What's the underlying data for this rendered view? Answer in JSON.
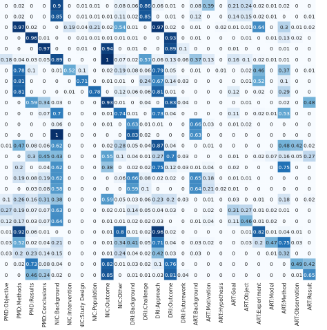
{
  "chart_data": {
    "type": "heatmap",
    "title": "",
    "xlabel": "",
    "ylabel": "",
    "colormap": "Blues",
    "value_range": [
      0,
      1
    ],
    "x_labels": [
      "PMD:Objective",
      "PMD:Methods",
      "PMD:Results",
      "PMD:Conclusions",
      "NIC:Background",
      "NIC:Intervention",
      "NIC:Study Design",
      "NIC:Population",
      "NIC:Outcome",
      "NIC:Other",
      "DRI:Background",
      "DRI:Challenge",
      "DRI:Approach",
      "DRI:Outcome",
      "DRI:Futurework",
      "ART:Background",
      "ART:Motivation",
      "ART:Hypothesis",
      "ART:Goal",
      "ART:Object",
      "ART:Experiment",
      "ART:Model",
      "ART:Method",
      "ART:Observation",
      "ART:Result"
    ],
    "row_label_fragments": [
      "",
      "",
      "",
      "",
      "",
      "",
      "",
      "",
      "",
      "",
      "",
      "",
      "",
      "",
      "",
      "",
      "",
      "",
      "",
      "",
      "",
      "",
      "",
      "",
      "",
      ""
    ],
    "matrix": [
      [
        "0",
        "0.02",
        "0",
        "0",
        "0.9",
        "0",
        "0.01",
        "0.01",
        "0",
        "0.08",
        "0.06",
        "0.86",
        "0.06",
        "0.01",
        "0",
        "0.08",
        "0.39",
        "0",
        "0.21",
        "0.24",
        "0.02",
        "0.01",
        "0.02",
        "0",
        "0"
      ],
      [
        "0",
        "0.02",
        "0",
        "0",
        "0.85",
        "0",
        "0.01",
        "0.01",
        "0.01",
        "0.11",
        "0.02",
        "0.85",
        "0",
        "0.01",
        "0",
        "0.12",
        "0",
        "0",
        "0.14",
        "0.15",
        "0.02",
        "0.01",
        "0",
        "0",
        "0.01"
      ],
      [
        "0",
        "0.97",
        "0.02",
        "0",
        "0",
        "0.19",
        "0.04",
        "0.21",
        "0.02",
        "0.54",
        "0.01",
        "0",
        "0.97",
        "0.02",
        "0",
        "0.01",
        "0",
        "0.02",
        "0.01",
        "0.01",
        "0.64",
        "0",
        "0.3",
        "0.01",
        "0.02"
      ],
      [
        "0",
        "0",
        "0.96",
        "0.01",
        "0",
        "0",
        "0.01",
        "0.01",
        "0.01",
        "0.01",
        "0.01",
        "0",
        "0",
        "0.93",
        "0",
        "0.01",
        "0",
        "0",
        "0",
        "0.01",
        "0",
        "0.01",
        "0.13",
        "0.02",
        "0"
      ],
      [
        "0",
        "0",
        "0",
        "0.97",
        "0",
        "0",
        "0.01",
        "0",
        "0.94",
        "0",
        "0.01",
        "0",
        "0",
        "0.89",
        "0.1",
        "0",
        "0",
        "0",
        "0.01",
        "0",
        "0",
        "0",
        "0.01",
        "0",
        "0"
      ],
      [
        "0.18",
        "0.04",
        "0.03",
        "0.05",
        "0.89",
        "0",
        "0",
        "0",
        "1",
        "0.07",
        "0.02",
        "0.57",
        "0.06",
        "0.13",
        "0.06",
        "0.37",
        "0.13",
        "0",
        "0.16",
        "0.1",
        "0.02",
        "0.01",
        "0.01",
        "0",
        "0"
      ],
      [
        "0",
        "0.78",
        "0.1",
        "0",
        "0.01",
        "0.52",
        "0.1",
        "0",
        "0.02",
        "0.19",
        "0.08",
        "0.06",
        "0.79",
        "0.05",
        "0",
        "0.01",
        "0",
        "0.01",
        "0",
        "0.02",
        "0.46",
        "0",
        "0.37",
        "0",
        "0.01"
      ],
      [
        "0",
        "0.81",
        "0",
        "0",
        "0",
        "0",
        "0.71",
        "0",
        "0.01",
        "0.01",
        "0",
        "0.24",
        "0.67",
        "0.14",
        "0.03",
        "0",
        "0",
        "0",
        "0",
        "0.01",
        "0.52",
        "0",
        "0.1",
        "0",
        "0"
      ],
      [
        "0",
        "0.81",
        "0",
        "0",
        "0",
        "0.01",
        "0",
        "0.78",
        "0",
        "0.12",
        "0.06",
        "0.06",
        "0.81",
        "0.01",
        "0",
        "0",
        "0",
        "0",
        "0.12",
        "0",
        "0.02",
        "0",
        "0.29",
        "0",
        "0"
      ],
      [
        "0",
        "0",
        "0.59",
        "0.34",
        "0.03",
        "0",
        "0",
        "0",
        "0.93",
        "0.01",
        "0",
        "0.04",
        "0",
        "0.83",
        "0.04",
        "0",
        "0",
        "0",
        "0",
        "0.01",
        "0",
        "0",
        "0.02",
        "0",
        "0.48"
      ],
      [
        "0",
        "0",
        "0",
        "0.07",
        "0.7",
        "0",
        "0",
        "0",
        "0.01",
        "0.74",
        "0.01",
        "0",
        "0.73",
        "0.04",
        "0",
        "0",
        "0",
        "0",
        "0.11",
        "0",
        "0.02",
        "0.01",
        "0.53",
        "0",
        "0"
      ],
      [
        "0",
        "0",
        "0",
        "0",
        "0.06",
        "0",
        "0",
        "0",
        "0.01",
        "0",
        "0.63",
        "0.01",
        "0.01",
        "0",
        "0",
        "0.66",
        "0.03",
        "0",
        "0.01",
        "0.02",
        "0",
        "0",
        "0",
        "0",
        "0"
      ],
      [
        "0",
        "0",
        "0",
        "0",
        "1",
        "0",
        "0",
        "0",
        "0",
        "0",
        "0.83",
        "0.02",
        "0",
        "0",
        "0",
        "0.63",
        "0",
        "0",
        "0",
        "0",
        "0",
        "0",
        "0",
        "0",
        "0"
      ],
      [
        "0.01",
        "0.47",
        "0.08",
        "0.06",
        "0.62",
        "0",
        "0",
        "0",
        "0.02",
        "0.28",
        "0.05",
        "0.04",
        "0.87",
        "0.04",
        "0",
        "0",
        "0.01",
        "0",
        "0",
        "0",
        "0",
        "0",
        "0.48",
        "0.42",
        "0.02"
      ],
      [
        "0",
        "0",
        "0.3",
        "0.45",
        "0.43",
        "0",
        "0",
        "0",
        "0.55",
        "0.1",
        "0.04",
        "0.01",
        "0.27",
        "0.7",
        "0.03",
        "0",
        "0",
        "0",
        "0.01",
        "0",
        "0.02",
        "0.07",
        "0.16",
        "0.05",
        "0.27"
      ],
      [
        "0",
        "0.2",
        "0",
        "0.04",
        "0.62",
        "0",
        "0",
        "0",
        "0.38",
        "0",
        "0.02",
        "0.02",
        "0.75",
        "0.12",
        "0.03",
        "0.01",
        "0.04",
        "0",
        "0.02",
        "0",
        "0",
        "0",
        "0.75",
        "0",
        "0"
      ],
      [
        "0",
        "0.19",
        "0.08",
        "0.19",
        "0.62",
        "0",
        "0",
        "0",
        "0",
        "0.06",
        "0.66",
        "0.08",
        "0.02",
        "0.02",
        "0",
        "0.65",
        "0.18",
        "0",
        "0.01",
        "0.01",
        "0",
        "0",
        "0",
        "0",
        "0"
      ],
      [
        "0",
        "0",
        "0.03",
        "0.08",
        "0.58",
        "0",
        "0",
        "0",
        "0",
        "0",
        "0.59",
        "0.1",
        "0",
        "0",
        "0",
        "0.64",
        "0.21",
        "0.02",
        "0.01",
        "0",
        "0",
        "0",
        "0",
        "0",
        "0"
      ],
      [
        "0.1",
        "0.26",
        "0.16",
        "0.31",
        "0.38",
        "0",
        "0",
        "0",
        "0.59",
        "0.05",
        "0.03",
        "0.06",
        "0.23",
        "0.2",
        "0.03",
        "0",
        "0.01",
        "0",
        "0.03",
        "0",
        "0.01",
        "0",
        "0.18",
        "0",
        "0.02"
      ],
      [
        "0.27",
        "0.19",
        "0.07",
        "0.07",
        "0.63",
        "0",
        "0",
        "0",
        "0.02",
        "0.01",
        "0.14",
        "0.05",
        "0.04",
        "0.03",
        "0",
        "0",
        "0.02",
        "0",
        "0.31",
        "0.27",
        "0.01",
        "0.02",
        "0.01",
        "0",
        "0"
      ],
      [
        "0.12",
        "0.17",
        "0.03",
        "0.07",
        "0.64",
        "0",
        "0",
        "0",
        "0.01",
        "0.01",
        "0.02",
        "0.02",
        "0.03",
        "0",
        "0",
        "0.01",
        "0.04",
        "0",
        "0.11",
        "0.46",
        "0.01",
        "0.02",
        "0",
        "0",
        "0"
      ],
      [
        "0.01",
        "0.92",
        "0.06",
        "0.01",
        "0",
        "0",
        "0",
        "0",
        "0.01",
        "0.8",
        "0.01",
        "0.02",
        "0.96",
        "0.02",
        "0",
        "0",
        "0",
        "0",
        "0",
        "0.01",
        "0.82",
        "0.01",
        "0.04",
        "0.01",
        "0"
      ],
      [
        "0.03",
        "0.52",
        "0.02",
        "0.04",
        "0.21",
        "0",
        "0",
        "0",
        "0.01",
        "0.34",
        "0.41",
        "0.05",
        "0.71",
        "0.04",
        "0",
        "0.03",
        "0.02",
        "0",
        "0",
        "0.03",
        "0.2",
        "0.47",
        "0.75",
        "0.03",
        "0"
      ],
      [
        "0.03",
        "0.2",
        "0.23",
        "0.14",
        "0.15",
        "0",
        "0",
        "0",
        "0.01",
        "0.24",
        "0.04",
        "0.02",
        "0.42",
        "0.03",
        "0",
        "0.03",
        "0",
        "0",
        "0",
        "0",
        "0",
        "0.01",
        "0.32",
        "0",
        "0"
      ],
      [
        "0",
        "0.02",
        "0.73",
        "0.08",
        "0.04",
        "0",
        "0",
        "0",
        "0.82",
        "0.01",
        "0.03",
        "0.02",
        "0.1",
        "0.76",
        "0",
        "0",
        "0",
        "0",
        "0",
        "0",
        "0",
        "0",
        "0",
        "0.49",
        "0.42"
      ],
      [
        "0",
        "0",
        "0.46",
        "0.34",
        "0.02",
        "0",
        "0",
        "0",
        "0.85",
        "0",
        "0.01",
        "0.01",
        "0.03",
        "0.81",
        "0.04",
        "0",
        "0",
        "0",
        "0",
        "0",
        "0",
        "0",
        "0",
        "0.01",
        "0.65"
      ]
    ]
  }
}
